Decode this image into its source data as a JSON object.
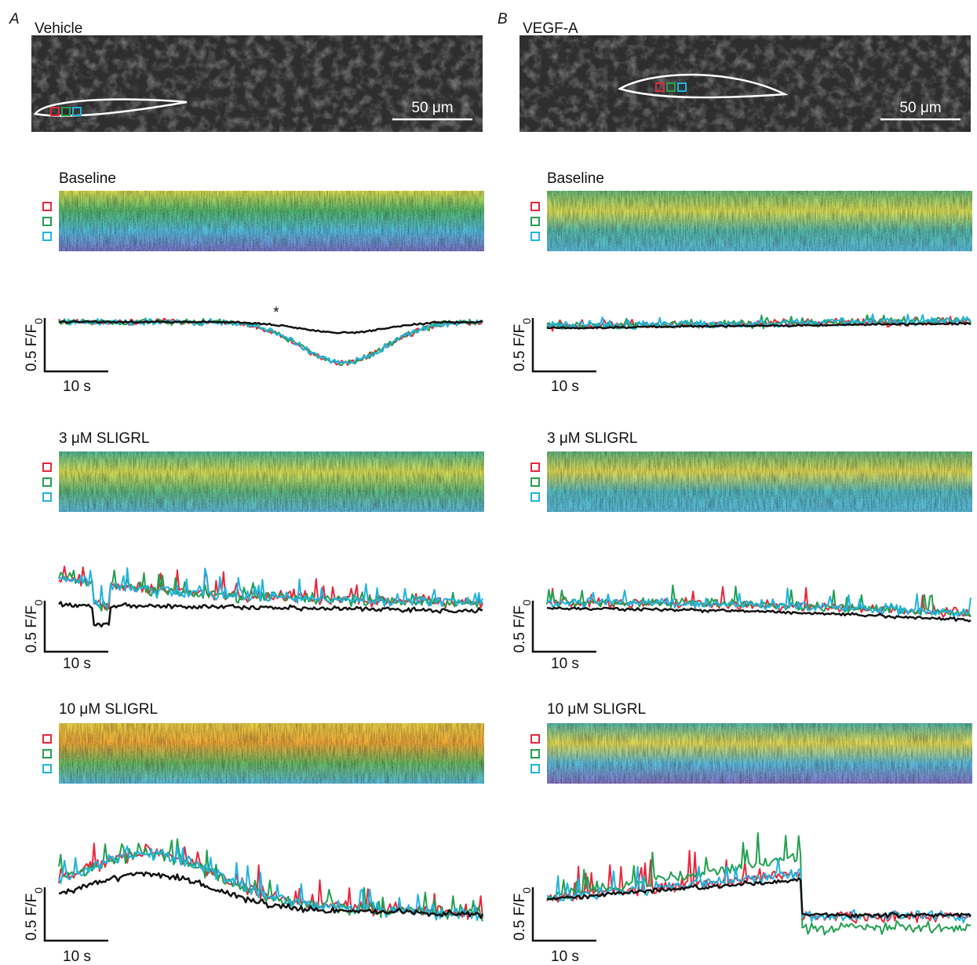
{
  "panels": [
    {
      "letter": "A",
      "condition": "Vehicle",
      "scale_bar": "50 μm",
      "sections": [
        {
          "label": "Baseline",
          "y_scale": "0.5 F/F",
          "y_scale_sub": "0",
          "x_scale": "10 s",
          "annotation": "*"
        },
        {
          "label": "3 μM SLIGRL",
          "y_scale": "0.5 F/F",
          "y_scale_sub": "0",
          "x_scale": "10 s"
        },
        {
          "label": "10 μM SLIGRL",
          "y_scale": "0.5 F/F",
          "y_scale_sub": "0",
          "x_scale": "10 s"
        }
      ]
    },
    {
      "letter": "B",
      "condition": "VEGF-A",
      "scale_bar": "50 μm",
      "sections": [
        {
          "label": "Baseline",
          "y_scale": "0.5 F/F",
          "y_scale_sub": "0",
          "x_scale": "10 s"
        },
        {
          "label": "3 μM SLIGRL",
          "y_scale": "0.5 F/F",
          "y_scale_sub": "0",
          "x_scale": "10 s"
        },
        {
          "label": "10 μM SLIGRL",
          "y_scale": "0.5 F/F",
          "y_scale_sub": "0",
          "x_scale": "10 s"
        }
      ]
    }
  ]
}
